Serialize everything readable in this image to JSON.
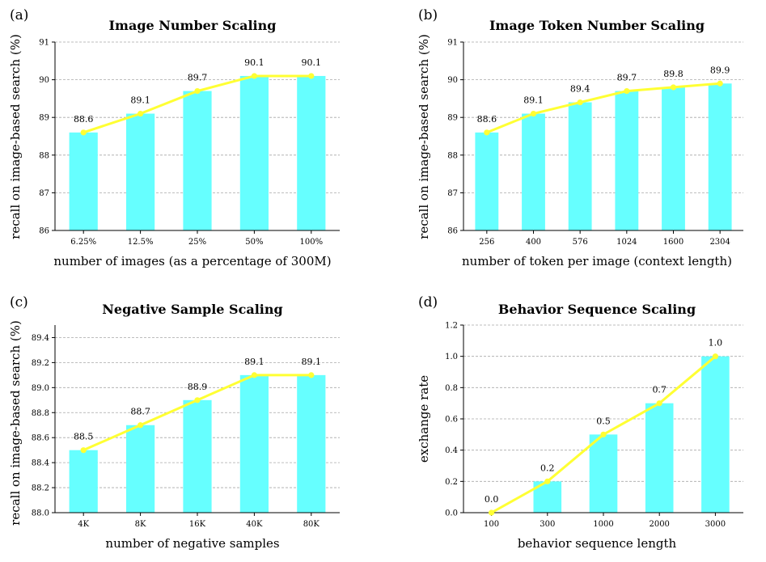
{
  "colors": {
    "bar": "#66ffff",
    "line": "#ffff33",
    "grid": "#a8a8a8"
  },
  "chart_data": [
    {
      "type": "bar",
      "panel": "(a)",
      "title": "Image Number Scaling",
      "xlabel": "number of images (as a percentage of 300M)",
      "ylabel": "recall on image-based search (%)",
      "categories": [
        "6.25%",
        "12.5%",
        "25%",
        "50%",
        "100%"
      ],
      "values": [
        88.6,
        89.1,
        89.7,
        90.1,
        90.1
      ],
      "data_labels": [
        "88.6",
        "89.1",
        "89.7",
        "90.1",
        "90.1"
      ],
      "overlay": "line",
      "ylim": [
        86,
        91
      ],
      "yticks": [
        86,
        87,
        88,
        89,
        90,
        91
      ],
      "ytick_labels": [
        "86",
        "87",
        "88",
        "89",
        "90",
        "91"
      ],
      "grid": true,
      "legend": "none"
    },
    {
      "type": "bar",
      "panel": "(b)",
      "title": "Image Token Number Scaling",
      "xlabel": "number of token per image (context length)",
      "ylabel": "recall on image-based search (%)",
      "categories": [
        "256",
        "400",
        "576",
        "1024",
        "1600",
        "2304"
      ],
      "values": [
        88.6,
        89.1,
        89.4,
        89.7,
        89.8,
        89.9
      ],
      "data_labels": [
        "88.6",
        "89.1",
        "89.4",
        "89.7",
        "89.8",
        "89.9"
      ],
      "overlay": "line",
      "ylim": [
        86,
        91
      ],
      "yticks": [
        86,
        87,
        88,
        89,
        90,
        91
      ],
      "ytick_labels": [
        "86",
        "87",
        "88",
        "89",
        "90",
        "91"
      ],
      "grid": true,
      "legend": "none"
    },
    {
      "type": "bar",
      "panel": "(c)",
      "title": "Negative Sample Scaling",
      "xlabel": "number of negative samples",
      "ylabel": "recall on image-based search (%)",
      "categories": [
        "4K",
        "8K",
        "16K",
        "40K",
        "80K"
      ],
      "values": [
        88.5,
        88.7,
        88.9,
        89.1,
        89.1
      ],
      "data_labels": [
        "88.5",
        "88.7",
        "88.9",
        "89.1",
        "89.1"
      ],
      "overlay": "line",
      "ylim": [
        88.0,
        89.5
      ],
      "yticks": [
        88.0,
        88.2,
        88.4,
        88.6,
        88.8,
        89.0,
        89.2,
        89.4
      ],
      "ytick_labels": [
        "88.0",
        "88.2",
        "88.4",
        "88.6",
        "88.8",
        "89.0",
        "89.2",
        "89.4"
      ],
      "grid": true,
      "legend": "none"
    },
    {
      "type": "bar",
      "panel": "(d)",
      "title": "Behavior Sequence Scaling",
      "xlabel": "behavior sequence length",
      "ylabel": "exchange rate",
      "categories": [
        "100",
        "300",
        "1000",
        "2000",
        "3000"
      ],
      "values": [
        0.0,
        0.2,
        0.5,
        0.7,
        1.0
      ],
      "data_labels": [
        "0.0",
        "0.2",
        "0.5",
        "0.7",
        "1.0"
      ],
      "overlay": "line",
      "ylim": [
        0.0,
        1.2
      ],
      "yticks": [
        0.0,
        0.2,
        0.4,
        0.6,
        0.8,
        1.0,
        1.2
      ],
      "ytick_labels": [
        "0.0",
        "0.2",
        "0.4",
        "0.6",
        "0.8",
        "1.0",
        "1.2"
      ],
      "grid": true,
      "legend": "none"
    }
  ]
}
